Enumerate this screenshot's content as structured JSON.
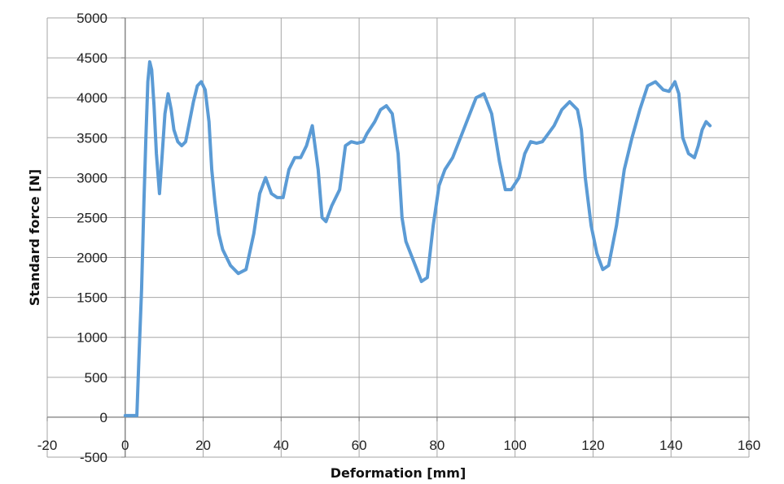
{
  "chart_data": {
    "type": "line",
    "title": "",
    "xlabel": "Deformation [mm]",
    "ylabel": "Standard force [N]",
    "xlim": [
      -20,
      160
    ],
    "ylim": [
      -500,
      5000
    ],
    "x_ticks": [
      "-20",
      "0",
      "20",
      "40",
      "60",
      "80",
      "100",
      "120",
      "140",
      "160"
    ],
    "y_ticks": [
      "-500",
      "0",
      "500",
      "1000",
      "1500",
      "2000",
      "2500",
      "3000",
      "3500",
      "4000",
      "4500",
      "5000"
    ],
    "grid": true,
    "legend": "none",
    "colors": {
      "series": "#5b9bd5",
      "grid": "#a6a6a6",
      "axis": "#7f7f7f"
    },
    "series": [
      {
        "x": [
          0,
          3,
          3.5,
          4.2,
          4.8,
          5.3,
          5.8,
          6.3,
          6.8,
          7.4,
          8,
          8.8,
          9.5,
          10.2,
          11,
          11.8,
          12.5,
          13.5,
          14.5,
          15.5,
          16.5,
          17.5,
          18.5,
          19.5,
          20.5,
          21.5,
          22.2,
          23,
          24,
          25,
          27,
          29,
          31,
          33,
          34.5,
          36,
          37.5,
          39,
          40.5,
          42,
          43.5,
          45,
          46.5,
          48,
          49.5,
          50.5,
          51.5,
          53,
          55,
          56.5,
          58,
          59.5,
          61,
          62,
          64,
          65.5,
          67,
          68.5,
          70,
          71,
          72,
          74,
          76,
          77.5,
          79,
          80.5,
          82,
          84,
          86,
          88,
          90,
          92,
          94,
          96,
          97.5,
          99,
          101,
          102.5,
          104,
          105.5,
          107,
          108.5,
          110,
          112,
          114,
          116,
          117,
          118,
          119.5,
          121,
          122.5,
          124,
          126,
          128,
          130,
          132,
          134,
          136,
          138,
          139.5,
          141,
          142,
          143,
          144.5,
          146,
          147,
          148,
          149,
          150
        ],
        "y": [
          20,
          20,
          700,
          1600,
          2700,
          3500,
          4200,
          4450,
          4350,
          3900,
          3300,
          2800,
          3300,
          3800,
          4050,
          3850,
          3600,
          3450,
          3400,
          3450,
          3700,
          3950,
          4150,
          4200,
          4100,
          3700,
          3100,
          2700,
          2300,
          2100,
          1900,
          1800,
          1850,
          2300,
          2800,
          3000,
          2800,
          2750,
          2750,
          3100,
          3250,
          3250,
          3400,
          3650,
          3100,
          2500,
          2450,
          2650,
          2850,
          3400,
          3450,
          3430,
          3450,
          3550,
          3700,
          3850,
          3900,
          3800,
          3300,
          2500,
          2200,
          1950,
          1700,
          1750,
          2400,
          2900,
          3100,
          3250,
          3500,
          3750,
          4000,
          4050,
          3800,
          3200,
          2850,
          2850,
          3000,
          3300,
          3450,
          3430,
          3450,
          3550,
          3650,
          3850,
          3950,
          3850,
          3600,
          3000,
          2400,
          2050,
          1850,
          1900,
          2400,
          3100,
          3500,
          3850,
          4150,
          4200,
          4100,
          4080,
          4200,
          4050,
          3500,
          3300,
          3250,
          3400,
          3600,
          3700,
          3650
        ]
      }
    ]
  }
}
